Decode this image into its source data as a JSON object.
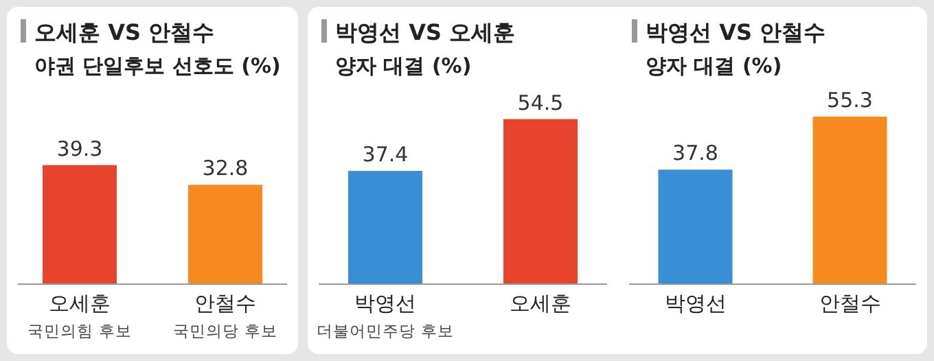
{
  "chart_data": [
    {
      "type": "bar",
      "title": "오세훈 VS 안철수",
      "subtitle": "야권 단일후보 선호도 (%)",
      "categories": [
        "오세훈\n국민의힘 후보",
        "안철수\n국민의당 후보"
      ],
      "values": [
        39.3,
        32.8
      ],
      "colors": [
        "#e8432d",
        "#f68a1e"
      ],
      "data_labels": true
    },
    {
      "type": "bar",
      "title": "박영선 VS 오세훈",
      "subtitle": "양자 대결 (%)",
      "categories": [
        "박영선\n더불어민주당 후보",
        "오세훈"
      ],
      "values": [
        37.4,
        54.5
      ],
      "colors": [
        "#3a8ed8",
        "#e8432d"
      ],
      "data_labels": true
    },
    {
      "type": "bar",
      "title": "박영선 VS 안철수",
      "subtitle": "양자 대결 (%)",
      "categories": [
        "박영선",
        "안철수"
      ],
      "values": [
        37.8,
        55.3
      ],
      "colors": [
        "#3a8ed8",
        "#f68a1e"
      ],
      "data_labels": true
    }
  ]
}
